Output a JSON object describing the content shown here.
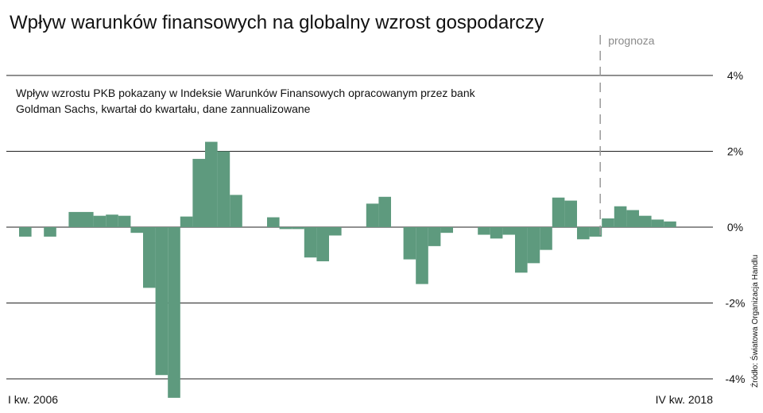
{
  "chart_data": {
    "type": "bar",
    "title": "Wpływ warunków finansowych na globalny wzrost gospodarczy",
    "subtitle_lines": [
      "Wpływ wzrostu PKB pokazany w Indeksie Warunków Finansowych opracowanym przez bank",
      "Goldman Sachs, kwartał do kwartału, dane zannualizowane"
    ],
    "x_start_label": "I kw. 2006",
    "x_end_label": "IV kw. 2018",
    "forecast_label": "prognoza",
    "forecast_start_index": 47,
    "source": "Źródło: Światowa Organizacja Handlu",
    "ylim": [
      -4.5,
      4
    ],
    "yticks": [
      4,
      2,
      0,
      -2,
      -4
    ],
    "ytick_labels": [
      "4%",
      "2%",
      "0%",
      "-2%",
      "-4%"
    ],
    "grid": true,
    "bar_color": "#5e9a7e",
    "values": [
      -0.25,
      0.0,
      -0.25,
      0.0,
      0.4,
      0.4,
      0.3,
      0.33,
      0.3,
      -0.15,
      -1.6,
      -3.9,
      -4.5,
      0.28,
      1.8,
      2.25,
      2.0,
      0.85,
      0.0,
      0.0,
      0.26,
      -0.05,
      -0.05,
      -0.8,
      -0.9,
      -0.22,
      0.0,
      0.0,
      0.62,
      0.8,
      0.0,
      -0.85,
      -1.5,
      -0.5,
      -0.15,
      0.0,
      0.0,
      -0.2,
      -0.3,
      -0.2,
      -1.2,
      -0.95,
      -0.6,
      0.78,
      0.7,
      -0.32,
      -0.25,
      0.23,
      0.55,
      0.45,
      0.3,
      0.2,
      0.15
    ]
  }
}
